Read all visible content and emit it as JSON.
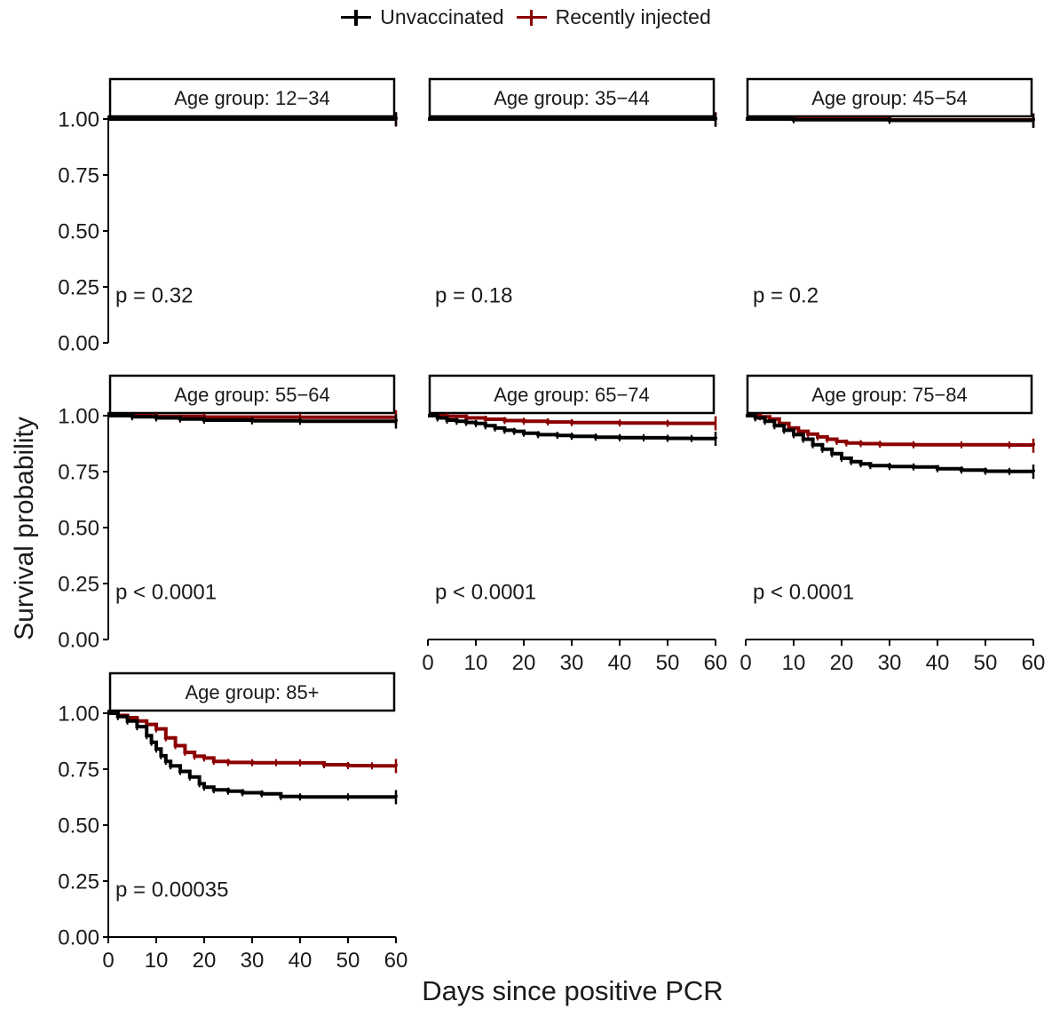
{
  "legend": {
    "items": [
      {
        "label": "Unvaccinated",
        "color": "#000000"
      },
      {
        "label": "Recently injected",
        "color": "#8b0000"
      }
    ]
  },
  "axes": {
    "ylabel": "Survival probability",
    "xlabel": "Days since positive PCR"
  },
  "chart_data": {
    "type": "line",
    "subtype": "kaplan-meier step survival curves, faceted",
    "xlabel": "Days since positive PCR",
    "ylabel": "Survival probability",
    "xlim": [
      0,
      60
    ],
    "ylim": [
      0,
      1.0
    ],
    "x_ticks": [
      0,
      10,
      20,
      30,
      40,
      50,
      60
    ],
    "y_ticks": [
      "0.00",
      "0.25",
      "0.50",
      "0.75",
      "1.00"
    ],
    "grid": false,
    "legend_position": "top",
    "series_colors": {
      "Unvaccinated": "#000000",
      "Recently injected": "#8b0000"
    },
    "facets": [
      {
        "title": "Age group: 12−34",
        "pvalue": "p = 0.32",
        "series": [
          {
            "name": "Unvaccinated",
            "points": [
              [
                0,
                1.0
              ],
              [
                60,
                0.999
              ]
            ]
          },
          {
            "name": "Recently injected",
            "points": [
              [
                0,
                1.0
              ],
              [
                60,
                0.998
              ]
            ]
          }
        ]
      },
      {
        "title": "Age group: 35−44",
        "pvalue": "p = 0.18",
        "series": [
          {
            "name": "Unvaccinated",
            "points": [
              [
                0,
                1.0
              ],
              [
                60,
                0.997
              ]
            ]
          },
          {
            "name": "Recently injected",
            "points": [
              [
                0,
                1.0
              ],
              [
                60,
                0.999
              ]
            ]
          }
        ]
      },
      {
        "title": "Age group: 45−54",
        "pvalue": "p = 0.2",
        "series": [
          {
            "name": "Unvaccinated",
            "points": [
              [
                0,
                1.0
              ],
              [
                10,
                0.997
              ],
              [
                30,
                0.994
              ],
              [
                60,
                0.992
              ]
            ]
          },
          {
            "name": "Recently injected",
            "points": [
              [
                0,
                1.0
              ],
              [
                30,
                0.996
              ],
              [
                60,
                0.994
              ]
            ]
          }
        ]
      },
      {
        "title": "Age group: 55−64",
        "pvalue": "p < 0.0001",
        "series": [
          {
            "name": "Unvaccinated",
            "points": [
              [
                0,
                1.0
              ],
              [
                5,
                0.995
              ],
              [
                10,
                0.99
              ],
              [
                15,
                0.985
              ],
              [
                20,
                0.98
              ],
              [
                30,
                0.977
              ],
              [
                40,
                0.975
              ],
              [
                60,
                0.974
              ]
            ]
          },
          {
            "name": "Recently injected",
            "points": [
              [
                0,
                1.0
              ],
              [
                10,
                0.997
              ],
              [
                20,
                0.994
              ],
              [
                40,
                0.993
              ],
              [
                60,
                0.993
              ]
            ]
          }
        ]
      },
      {
        "title": "Age group: 65−74",
        "pvalue": "p < 0.0001",
        "series": [
          {
            "name": "Unvaccinated",
            "points": [
              [
                0,
                1.0
              ],
              [
                2,
                0.99
              ],
              [
                4,
                0.98
              ],
              [
                6,
                0.975
              ],
              [
                8,
                0.97
              ],
              [
                10,
                0.965
              ],
              [
                12,
                0.955
              ],
              [
                14,
                0.945
              ],
              [
                16,
                0.935
              ],
              [
                18,
                0.93
              ],
              [
                20,
                0.922
              ],
              [
                23,
                0.915
              ],
              [
                27,
                0.912
              ],
              [
                30,
                0.908
              ],
              [
                35,
                0.904
              ],
              [
                40,
                0.902
              ],
              [
                45,
                0.901
              ],
              [
                50,
                0.899
              ],
              [
                55,
                0.898
              ],
              [
                60,
                0.897
              ]
            ]
          },
          {
            "name": "Recently injected",
            "points": [
              [
                0,
                1.0
              ],
              [
                4,
                0.997
              ],
              [
                8,
                0.99
              ],
              [
                12,
                0.984
              ],
              [
                16,
                0.978
              ],
              [
                20,
                0.975
              ],
              [
                25,
                0.972
              ],
              [
                30,
                0.969
              ],
              [
                40,
                0.967
              ],
              [
                50,
                0.966
              ],
              [
                60,
                0.966
              ]
            ]
          }
        ]
      },
      {
        "title": "Age group: 75−84",
        "pvalue": "p < 0.0001",
        "series": [
          {
            "name": "Unvaccinated",
            "points": [
              [
                0,
                1.0
              ],
              [
                2,
                0.99
              ],
              [
                4,
                0.975
              ],
              [
                6,
                0.955
              ],
              [
                8,
                0.935
              ],
              [
                10,
                0.915
              ],
              [
                12,
                0.895
              ],
              [
                14,
                0.87
              ],
              [
                16,
                0.85
              ],
              [
                18,
                0.83
              ],
              [
                20,
                0.81
              ],
              [
                22,
                0.795
              ],
              [
                24,
                0.785
              ],
              [
                26,
                0.777
              ],
              [
                30,
                0.773
              ],
              [
                35,
                0.771
              ],
              [
                40,
                0.763
              ],
              [
                45,
                0.757
              ],
              [
                50,
                0.752
              ],
              [
                55,
                0.751
              ],
              [
                60,
                0.75
              ]
            ]
          },
          {
            "name": "Recently injected",
            "points": [
              [
                0,
                1.0
              ],
              [
                3,
                0.995
              ],
              [
                5,
                0.985
              ],
              [
                7,
                0.965
              ],
              [
                9,
                0.945
              ],
              [
                11,
                0.93
              ],
              [
                13,
                0.918
              ],
              [
                15,
                0.905
              ],
              [
                17,
                0.895
              ],
              [
                19,
                0.885
              ],
              [
                21,
                0.878
              ],
              [
                24,
                0.875
              ],
              [
                28,
                0.872
              ],
              [
                35,
                0.87
              ],
              [
                45,
                0.87
              ],
              [
                55,
                0.869
              ],
              [
                60,
                0.866
              ]
            ]
          }
        ]
      },
      {
        "title": "Age group: 85+",
        "pvalue": "p = 0.00035",
        "series": [
          {
            "name": "Unvaccinated",
            "points": [
              [
                0,
                1.0
              ],
              [
                2,
                0.985
              ],
              [
                4,
                0.965
              ],
              [
                6,
                0.94
              ],
              [
                8,
                0.9
              ],
              [
                9,
                0.87
              ],
              [
                10,
                0.84
              ],
              [
                11,
                0.81
              ],
              [
                12,
                0.785
              ],
              [
                13,
                0.765
              ],
              [
                15,
                0.74
              ],
              [
                17,
                0.715
              ],
              [
                19,
                0.685
              ],
              [
                20,
                0.67
              ],
              [
                22,
                0.658
              ],
              [
                25,
                0.652
              ],
              [
                28,
                0.645
              ],
              [
                32,
                0.64
              ],
              [
                36,
                0.628
              ],
              [
                40,
                0.626
              ],
              [
                50,
                0.626
              ],
              [
                60,
                0.625
              ]
            ]
          },
          {
            "name": "Recently injected",
            "points": [
              [
                0,
                1.0
              ],
              [
                2,
                0.99
              ],
              [
                4,
                0.98
              ],
              [
                6,
                0.965
              ],
              [
                8,
                0.95
              ],
              [
                10,
                0.93
              ],
              [
                12,
                0.89
              ],
              [
                14,
                0.855
              ],
              [
                16,
                0.825
              ],
              [
                18,
                0.808
              ],
              [
                20,
                0.8
              ],
              [
                22,
                0.785
              ],
              [
                25,
                0.78
              ],
              [
                30,
                0.779
              ],
              [
                35,
                0.779
              ],
              [
                40,
                0.778
              ],
              [
                45,
                0.77
              ],
              [
                50,
                0.766
              ],
              [
                55,
                0.765
              ],
              [
                60,
                0.764
              ]
            ]
          }
        ]
      }
    ]
  }
}
